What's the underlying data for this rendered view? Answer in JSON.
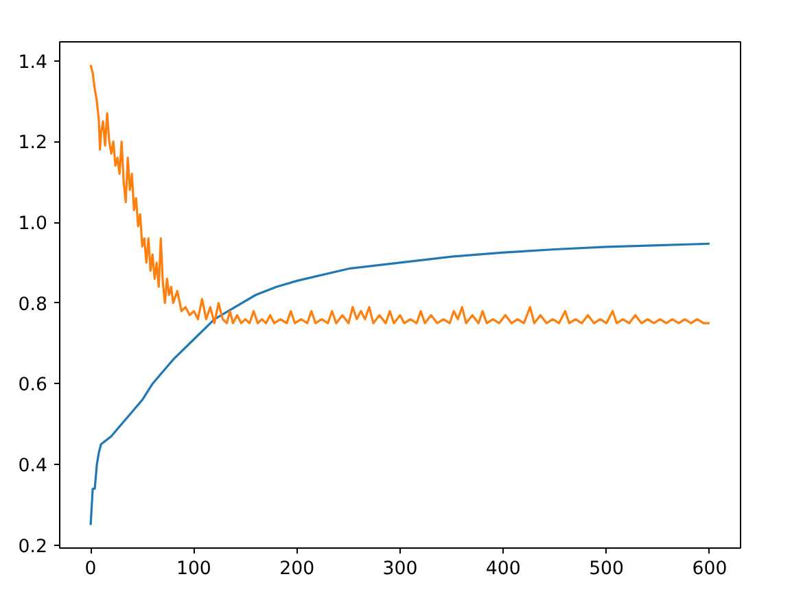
{
  "chart_data": {
    "type": "line",
    "xlim": [
      -30,
      630
    ],
    "ylim": [
      0.193,
      1.447
    ],
    "xticks": [
      0,
      100,
      200,
      300,
      400,
      500,
      600
    ],
    "yticks": [
      0.2,
      0.4,
      0.6,
      0.8,
      {
        "value": 1.0,
        "label": "1.0"
      },
      1.2,
      1.4
    ],
    "grid": false,
    "line_style": "solid",
    "series": [
      {
        "color": "#1f77b4",
        "x": [
          0,
          2,
          4,
          6,
          8,
          10,
          20,
          30,
          40,
          50,
          60,
          70,
          80,
          100,
          120,
          140,
          160,
          180,
          200,
          250,
          300,
          350,
          400,
          450,
          500,
          550,
          600
        ],
        "values": [
          0.25,
          0.34,
          0.34,
          0.4,
          0.43,
          0.45,
          0.47,
          0.5,
          0.53,
          0.56,
          0.6,
          0.63,
          0.66,
          0.71,
          0.76,
          0.79,
          0.82,
          0.84,
          0.855,
          0.885,
          0.9,
          0.915,
          0.925,
          0.933,
          0.939,
          0.943,
          0.947
        ]
      },
      {
        "color": "#ff7f0e",
        "x": [
          0,
          2,
          4,
          6,
          8,
          9,
          10,
          12,
          14,
          16,
          18,
          20,
          22,
          24,
          26,
          28,
          30,
          32,
          34,
          36,
          38,
          40,
          42,
          44,
          46,
          48,
          50,
          52,
          54,
          56,
          58,
          60,
          62,
          64,
          66,
          68,
          70,
          72,
          74,
          76,
          78,
          80,
          84,
          88,
          92,
          96,
          100,
          104,
          108,
          112,
          116,
          120,
          124,
          128,
          132,
          135,
          138,
          142,
          146,
          150,
          154,
          158,
          162,
          166,
          170,
          174,
          178,
          184,
          190,
          194,
          198,
          204,
          210,
          214,
          218,
          224,
          230,
          234,
          238,
          244,
          250,
          254,
          258,
          262,
          266,
          270,
          274,
          280,
          286,
          290,
          294,
          300,
          304,
          310,
          316,
          320,
          324,
          330,
          336,
          342,
          348,
          352,
          356,
          360,
          364,
          370,
          376,
          380,
          384,
          390,
          396,
          402,
          408,
          414,
          420,
          426,
          430,
          436,
          442,
          448,
          454,
          460,
          464,
          470,
          476,
          482,
          488,
          494,
          500,
          506,
          510,
          516,
          522,
          528,
          534,
          540,
          546,
          552,
          558,
          564,
          570,
          576,
          582,
          588,
          594,
          600
        ],
        "values": [
          1.39,
          1.37,
          1.33,
          1.3,
          1.25,
          1.18,
          1.22,
          1.25,
          1.19,
          1.27,
          1.2,
          1.17,
          1.2,
          1.14,
          1.16,
          1.12,
          1.2,
          1.1,
          1.05,
          1.16,
          1.08,
          1.12,
          1.03,
          1.06,
          0.99,
          1.02,
          0.94,
          0.96,
          0.9,
          0.96,
          0.88,
          0.92,
          0.86,
          0.9,
          0.84,
          0.96,
          0.85,
          0.8,
          0.86,
          0.82,
          0.84,
          0.8,
          0.83,
          0.78,
          0.79,
          0.77,
          0.78,
          0.76,
          0.81,
          0.76,
          0.79,
          0.75,
          0.8,
          0.76,
          0.75,
          0.78,
          0.75,
          0.77,
          0.75,
          0.76,
          0.75,
          0.78,
          0.75,
          0.76,
          0.75,
          0.77,
          0.75,
          0.76,
          0.75,
          0.78,
          0.75,
          0.76,
          0.75,
          0.78,
          0.75,
          0.76,
          0.75,
          0.78,
          0.75,
          0.77,
          0.75,
          0.79,
          0.76,
          0.78,
          0.76,
          0.79,
          0.75,
          0.77,
          0.75,
          0.78,
          0.75,
          0.77,
          0.75,
          0.76,
          0.75,
          0.78,
          0.75,
          0.77,
          0.75,
          0.76,
          0.75,
          0.78,
          0.76,
          0.79,
          0.75,
          0.77,
          0.75,
          0.78,
          0.75,
          0.76,
          0.75,
          0.77,
          0.75,
          0.76,
          0.75,
          0.79,
          0.75,
          0.77,
          0.75,
          0.76,
          0.75,
          0.78,
          0.75,
          0.76,
          0.75,
          0.77,
          0.75,
          0.76,
          0.75,
          0.78,
          0.75,
          0.76,
          0.75,
          0.77,
          0.75,
          0.76,
          0.75,
          0.76,
          0.75,
          0.76,
          0.75,
          0.76,
          0.75,
          0.76,
          0.75,
          0.75
        ]
      }
    ]
  }
}
